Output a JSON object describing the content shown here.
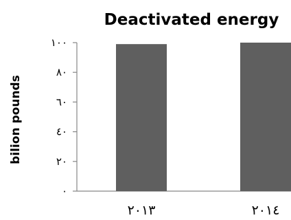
{
  "chart_data": {
    "type": "bar",
    "title": "Deactivated energy",
    "xlabel": "",
    "ylabel": "bilion pounds",
    "categories": [
      "٢٠١٣",
      "٢٠١٤"
    ],
    "values": [
      99,
      100
    ],
    "ylim": [
      0,
      100
    ],
    "yticks": [
      0,
      20,
      40,
      60,
      80,
      100
    ],
    "ytick_labels": [
      "٠",
      "٢٠",
      "٤٠",
      "٦٠",
      "٨٠",
      "١٠٠"
    ],
    "grid": false,
    "legend": "none",
    "bar_color": "#5f5f5f",
    "axis_color": "#868686"
  }
}
